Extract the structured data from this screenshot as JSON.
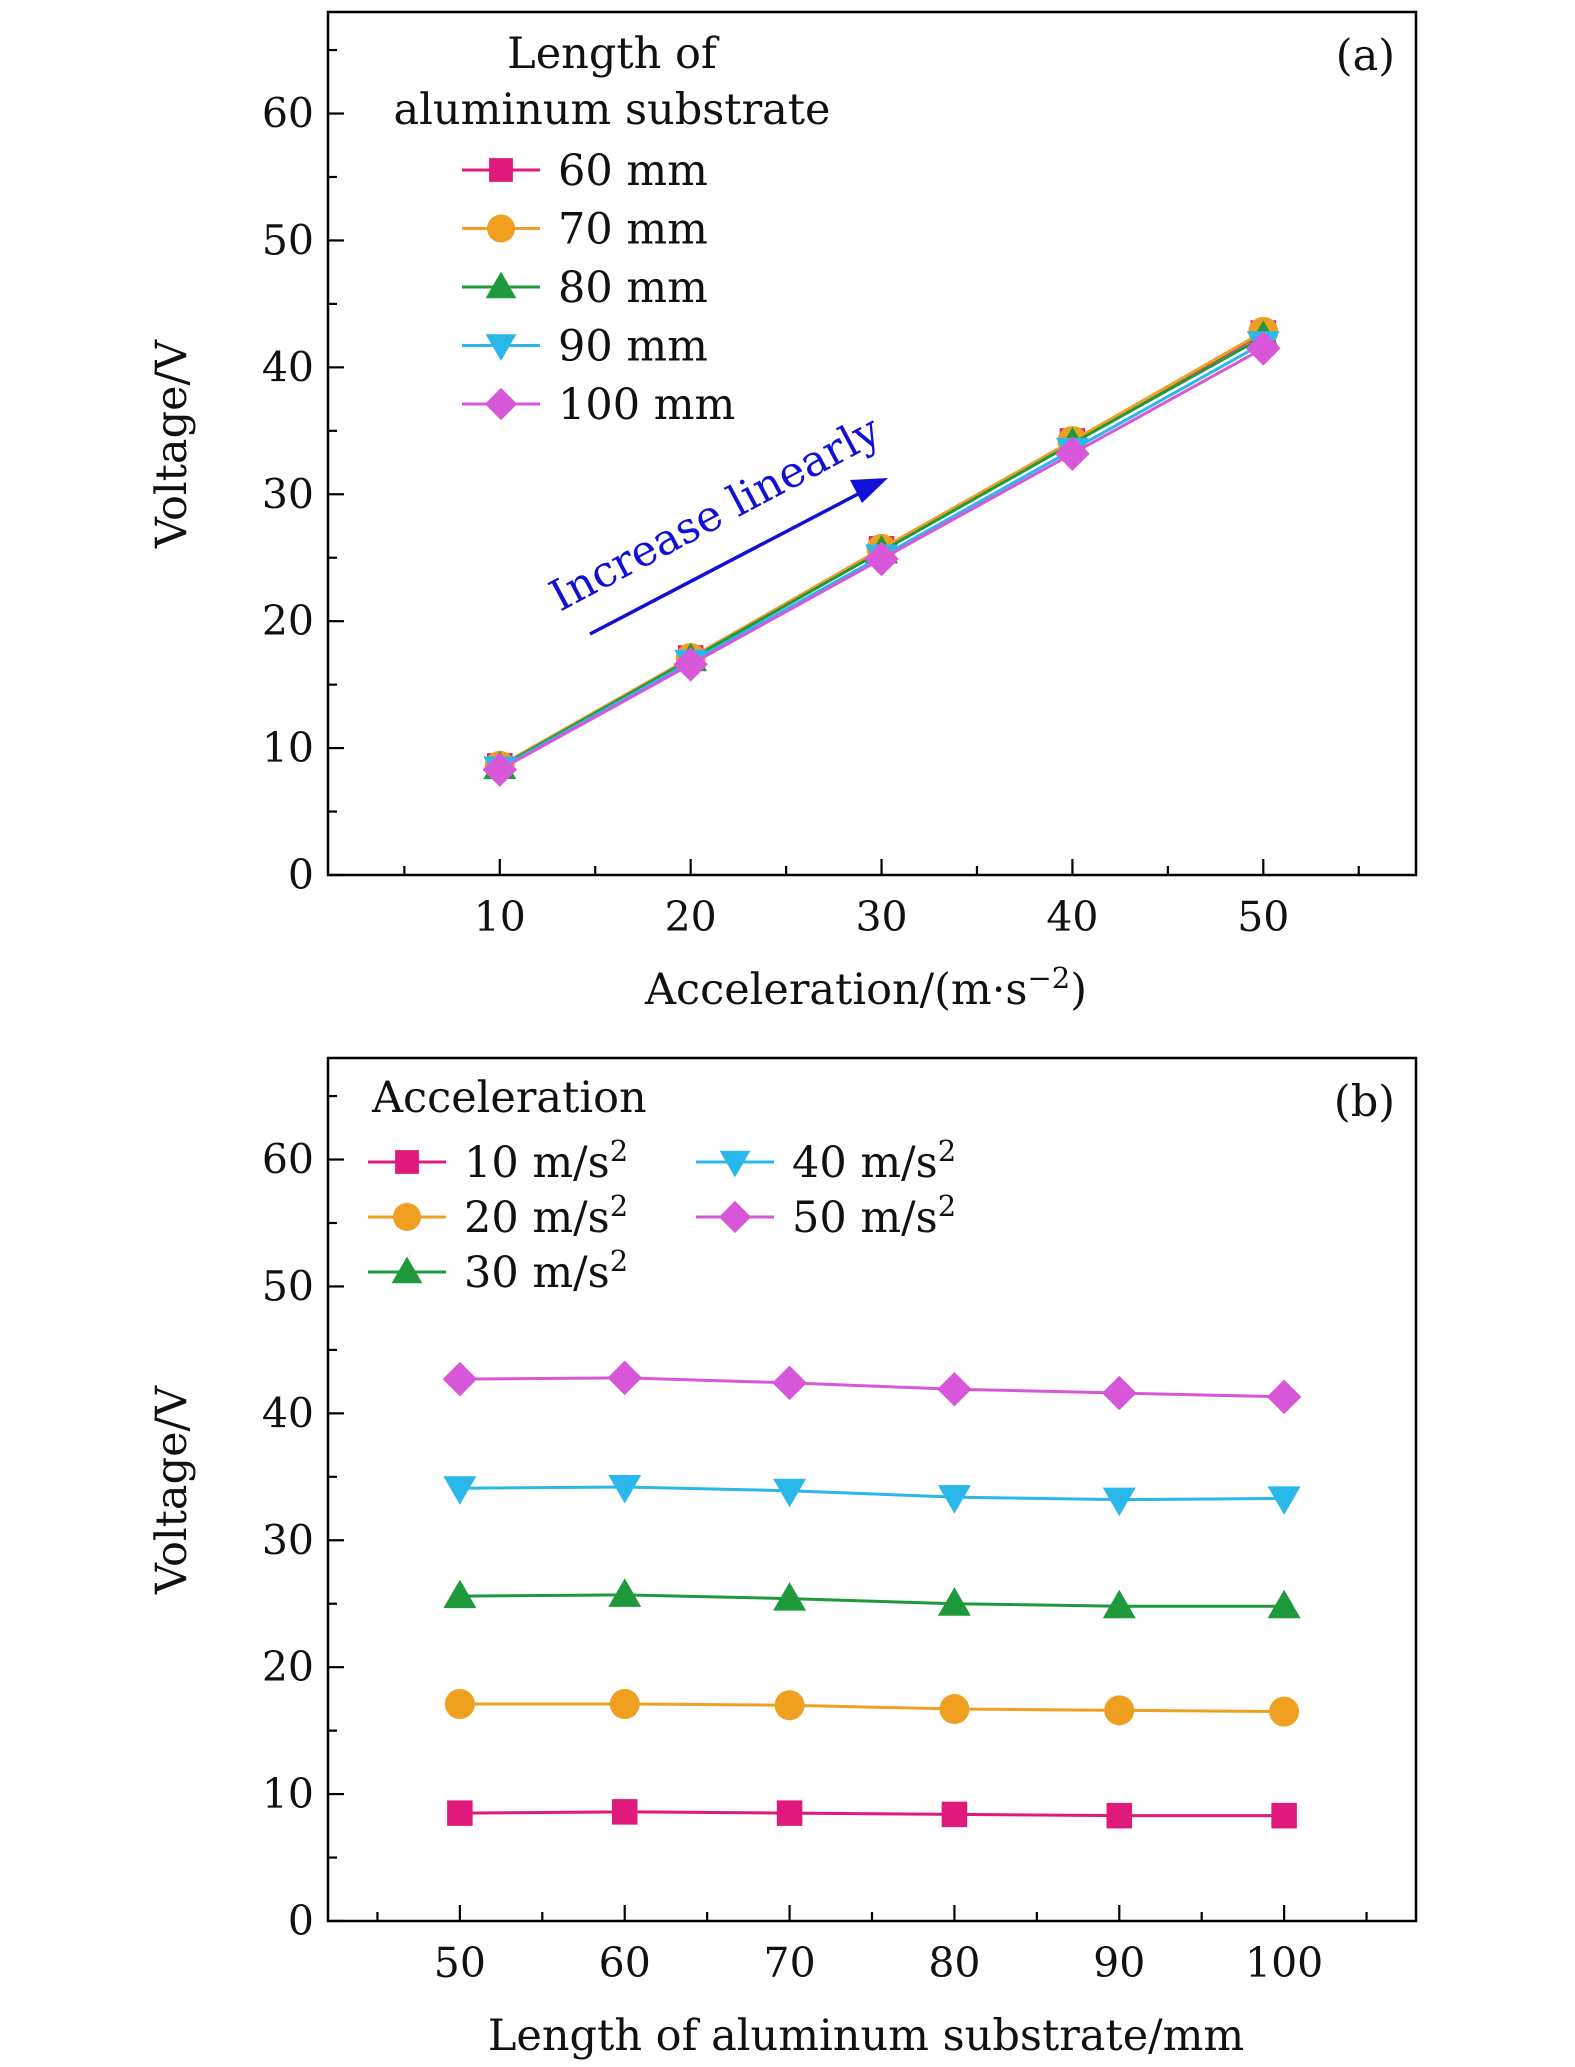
{
  "chart_data": [
    {
      "type": "line",
      "panel_label": "(a)",
      "xlabel": "Acceleration/(m·s",
      "xlabel_sup": "−2",
      "xlabel_end": ")",
      "ylabel": "Voltage/V",
      "xlim": [
        1,
        58
      ],
      "ylim": [
        0,
        68
      ],
      "xticks": [
        10,
        20,
        30,
        40,
        50
      ],
      "yticks": [
        0,
        10,
        20,
        30,
        40,
        50,
        60
      ],
      "x": [
        10,
        20,
        30,
        40,
        50
      ],
      "legend_title": [
        "Length of",
        "aluminum substrate"
      ],
      "annotation": "Increase linearly",
      "series": [
        {
          "name": "60 mm",
          "marker": "square",
          "color": "#e0197d",
          "values": [
            8.6,
            17.1,
            25.7,
            34.2,
            42.7
          ]
        },
        {
          "name": "70 mm",
          "marker": "circle",
          "color": "#f0a020",
          "values": [
            8.6,
            17.1,
            25.7,
            34.2,
            42.8
          ]
        },
        {
          "name": "80 mm",
          "marker": "triangle-up",
          "color": "#1e9a3c",
          "values": [
            8.5,
            17.0,
            25.5,
            34.0,
            42.4
          ]
        },
        {
          "name": "90 mm",
          "marker": "triangle-down",
          "color": "#2ab8ea",
          "values": [
            8.4,
            16.8,
            25.1,
            33.5,
            41.9
          ]
        },
        {
          "name": "100 mm",
          "marker": "diamond",
          "color": "#d757d8",
          "values": [
            8.3,
            16.6,
            24.9,
            33.2,
            41.5
          ]
        }
      ]
    },
    {
      "type": "line",
      "panel_label": "(b)",
      "xlabel": "Length of aluminum substrate/mm",
      "ylabel": "Voltage/V",
      "xlim": [
        42,
        108
      ],
      "ylim": [
        0,
        68
      ],
      "xticks": [
        50,
        60,
        70,
        80,
        90,
        100
      ],
      "yticks": [
        0,
        10,
        20,
        30,
        40,
        50,
        60
      ],
      "x": [
        50,
        60,
        70,
        80,
        90,
        100
      ],
      "legend_title": "Acceleration",
      "legend_unit": "m/s",
      "legend_unit_sup": "2",
      "series": [
        {
          "name": "10",
          "marker": "square",
          "color": "#e0197d",
          "values": [
            8.5,
            8.6,
            8.5,
            8.4,
            8.3,
            8.3
          ]
        },
        {
          "name": "20",
          "marker": "circle",
          "color": "#f0a020",
          "values": [
            17.1,
            17.1,
            17.0,
            16.7,
            16.6,
            16.5
          ]
        },
        {
          "name": "30",
          "marker": "triangle-up",
          "color": "#1e9a3c",
          "values": [
            25.6,
            25.7,
            25.4,
            25.0,
            24.8,
            24.8
          ]
        },
        {
          "name": "40",
          "marker": "triangle-down",
          "color": "#2ab8ea",
          "values": [
            34.1,
            34.2,
            33.9,
            33.4,
            33.2,
            33.3
          ]
        },
        {
          "name": "50",
          "marker": "diamond",
          "color": "#d757d8",
          "values": [
            42.7,
            42.8,
            42.4,
            41.9,
            41.6,
            41.3
          ]
        }
      ]
    }
  ]
}
